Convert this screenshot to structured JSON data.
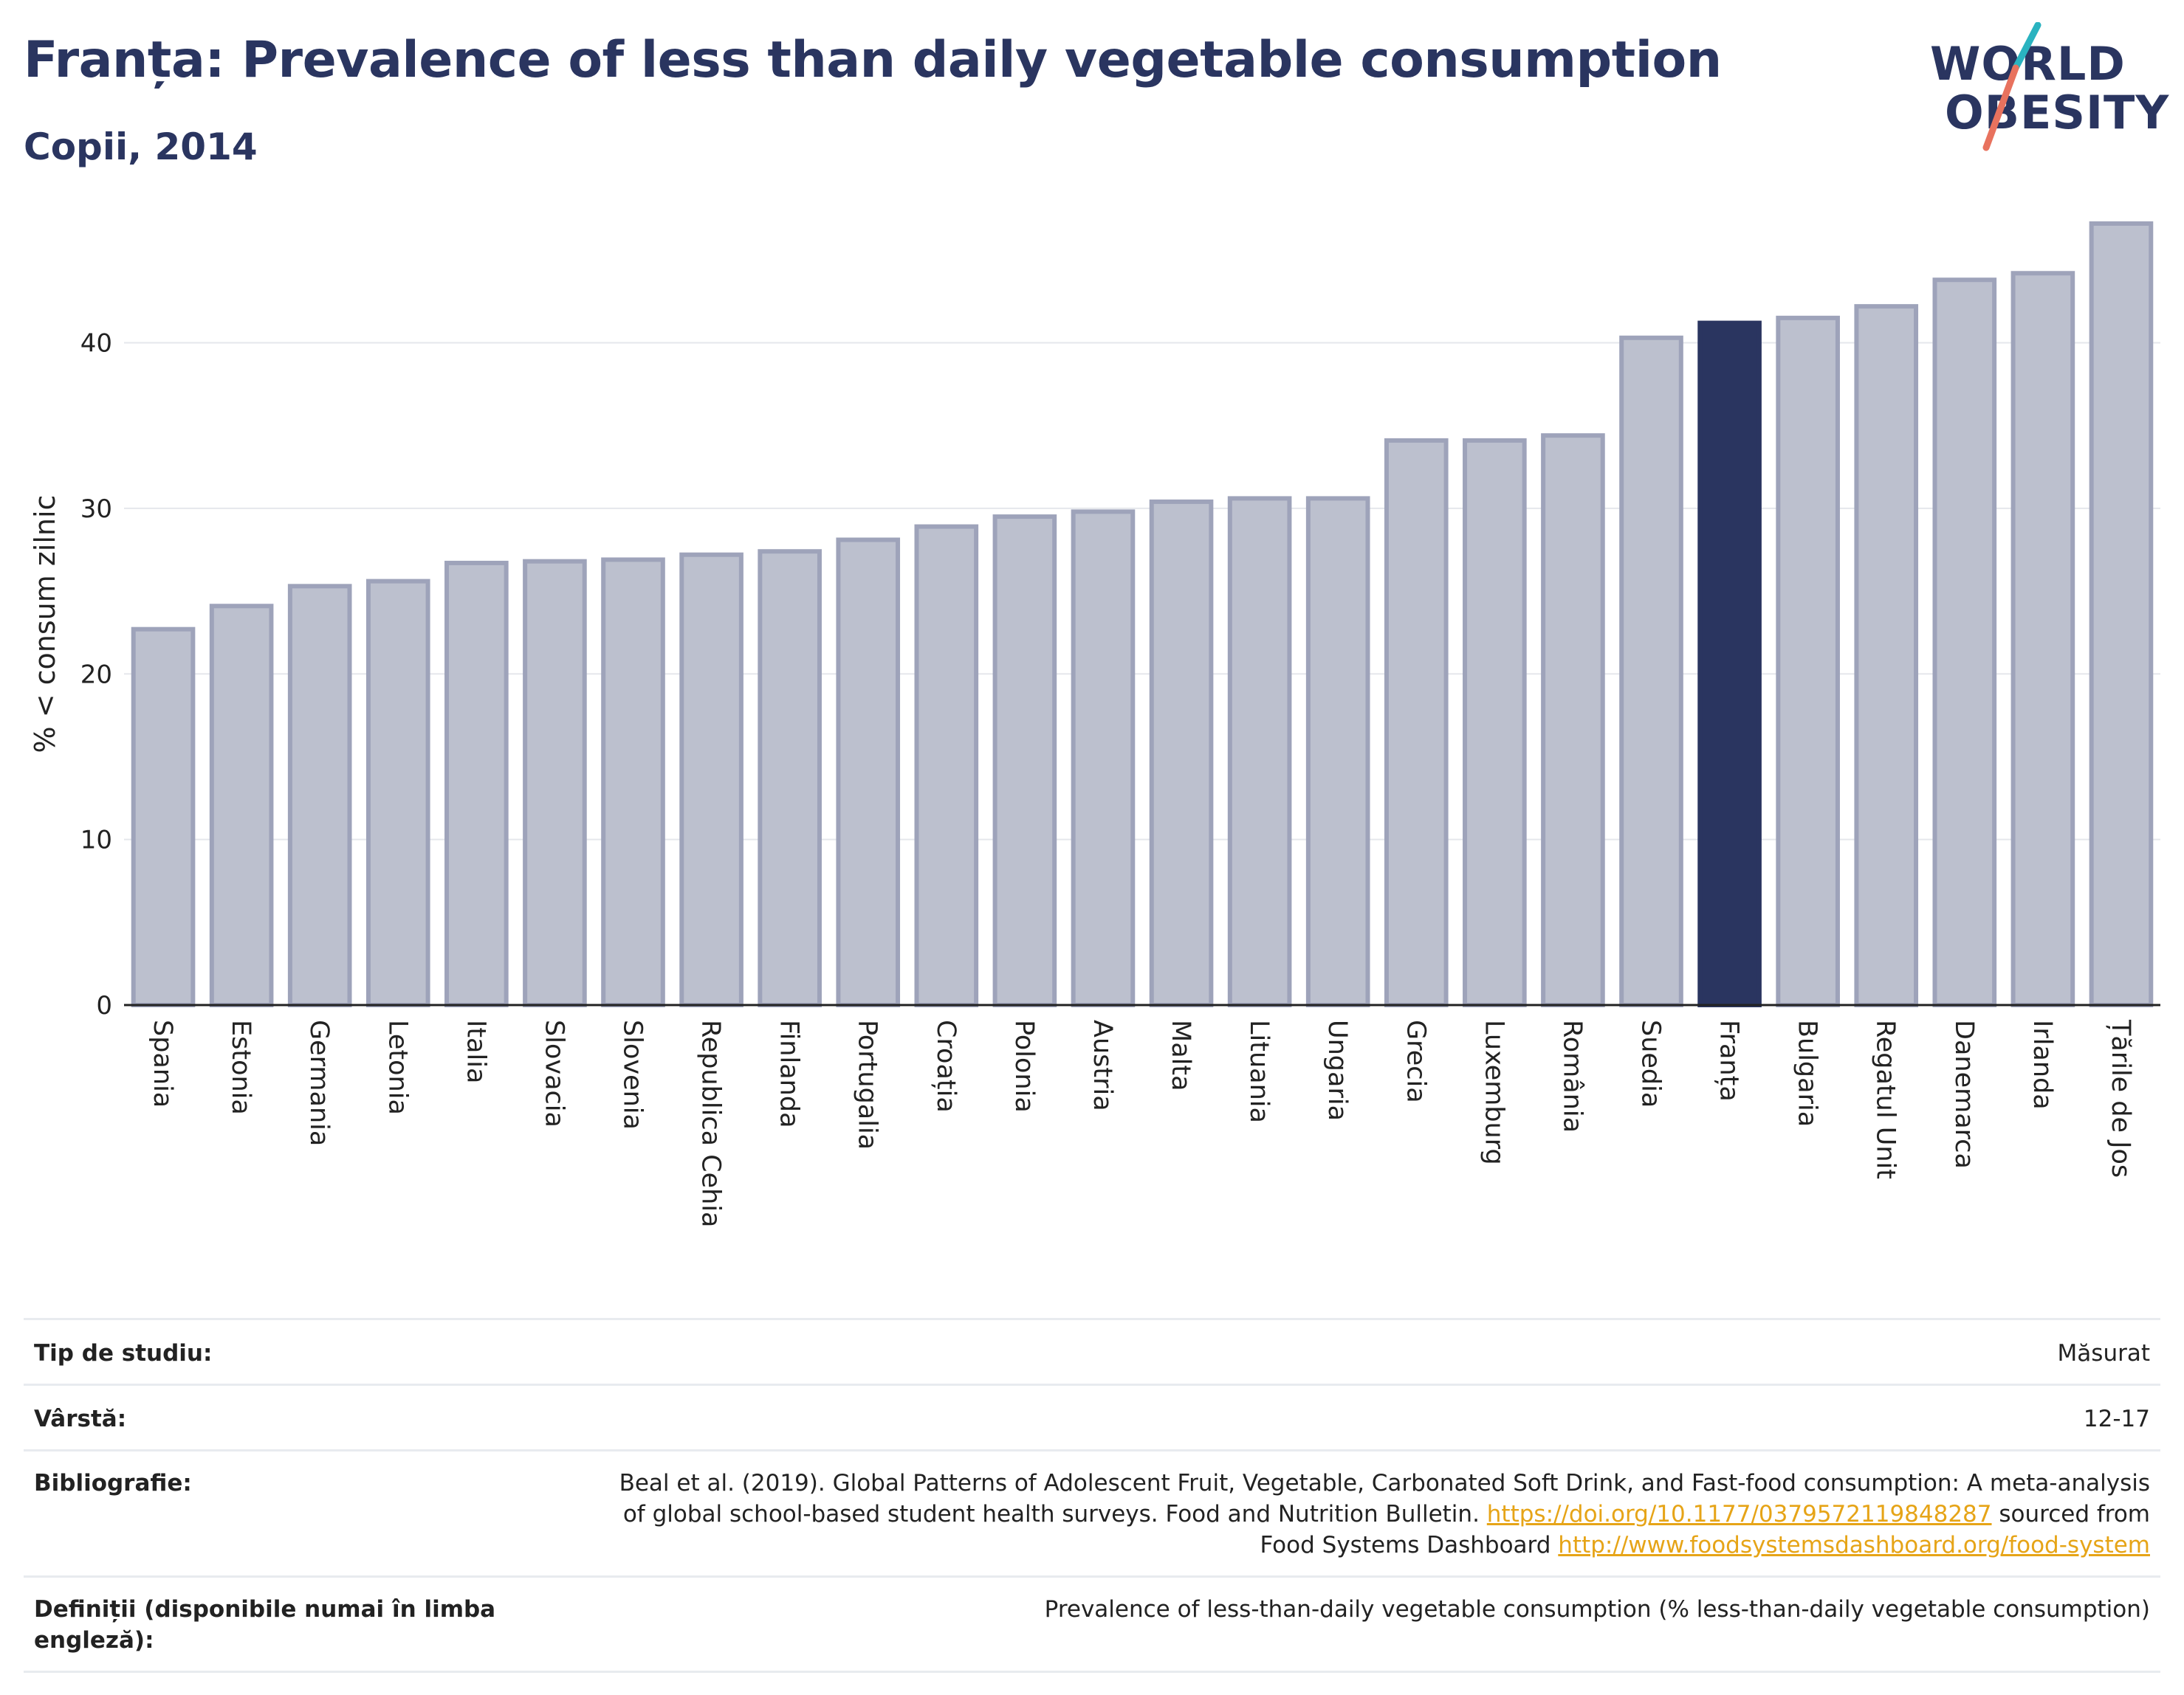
{
  "header": {
    "title": "Franța: Prevalence of less than daily vegetable consumption",
    "subtitle": "Copii, 2014"
  },
  "logo": {
    "line1": "WORLD",
    "line2": "OBESITY",
    "colors": {
      "text": "#2a3560",
      "slash_top": "#2ab3c0",
      "slash_bottom": "#e8725e"
    }
  },
  "colors": {
    "bar": "#bcc0ce",
    "bar_border": "#9ea3ba",
    "highlight": "#2a3560",
    "grid": "#e5e7ec",
    "axis": "#222222"
  },
  "chart_data": {
    "type": "bar",
    "ylabel": "% < consum zilnic",
    "xlabel": "",
    "ylim": [
      0,
      48
    ],
    "yticks": [
      0,
      10,
      20,
      30,
      40
    ],
    "grid": true,
    "highlight": "Franța",
    "categories": [
      "Spania",
      "Estonia",
      "Germania",
      "Letonia",
      "Italia",
      "Slovacia",
      "Slovenia",
      "Republica Cehia",
      "Finlanda",
      "Portugalia",
      "Croația",
      "Polonia",
      "Austria",
      "Malta",
      "Lituania",
      "Ungaria",
      "Grecia",
      "Luxemburg",
      "România",
      "Suedia",
      "Franța",
      "Bulgaria",
      "Regatul Unit",
      "Danemarca",
      "Irlanda",
      "Țările de Jos"
    ],
    "values": [
      22.7,
      24.1,
      25.3,
      25.6,
      26.7,
      26.8,
      26.9,
      27.2,
      27.4,
      28.1,
      28.9,
      29.5,
      29.8,
      30.4,
      30.6,
      30.6,
      34.1,
      34.1,
      34.4,
      40.3,
      41.2,
      41.5,
      42.2,
      43.8,
      44.2,
      47.2
    ]
  },
  "info": {
    "rows": [
      {
        "label": "Tip de studiu:",
        "value": "Măsurat"
      },
      {
        "label": "Vârstă:",
        "value": "12-17"
      },
      {
        "label": "Bibliografie:",
        "line1": "Beal et al. (2019). Global Patterns of Adolescent Fruit, Vegetable, Carbonated Soft Drink, and Fast-food consumption: A meta-analysis",
        "line2_text": "of global school-based student health surveys. Food and Nutrition Bulletin.",
        "line2_link": "https://doi.org/10.1177/0379572119848287",
        "line2_tail": "sourced from",
        "line3_text": "Food Systems Dashboard",
        "line3_link": "http://www.foodsystemsdashboard.org/food-system"
      },
      {
        "label": "Definiții (disponibile numai în limba engleză):",
        "value": "Prevalence of less-than-daily vegetable consumption (% less-than-daily vegetable consumption)"
      }
    ]
  }
}
